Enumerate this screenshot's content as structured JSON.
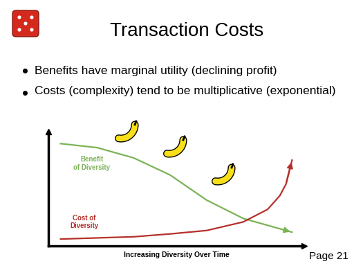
{
  "title": "Transaction Costs",
  "bullets": [
    "Benefits have marginal utility (declining profit)",
    "Costs (complexity) tend to be multiplicative (exponential)"
  ],
  "page": "Page 21",
  "chart_data": {
    "type": "line",
    "x_label": "Increasing Diversity Over Time",
    "x": [
      0.5,
      2,
      3.5,
      5,
      6.5,
      8,
      9,
      9.5,
      9.75,
      10
    ],
    "series": [
      {
        "name": "Benefit\nof Diversity",
        "color": "#7ab356",
        "values": [
          8.95,
          8.6,
          7.7,
          6.2,
          4.0,
          2.4,
          1.8,
          1.5,
          1.35,
          1.2
        ]
      },
      {
        "name": "Cost of\nDiversity",
        "color": "#b5302a",
        "values": [
          0.6,
          0.7,
          0.8,
          1.05,
          1.35,
          2.1,
          3.2,
          4.4,
          5.4,
          7.5
        ]
      }
    ],
    "xlim": [
      0,
      10.5
    ],
    "ylim": [
      0,
      10
    ],
    "xticks": [],
    "yticks": [],
    "tick_labels": false
  }
}
